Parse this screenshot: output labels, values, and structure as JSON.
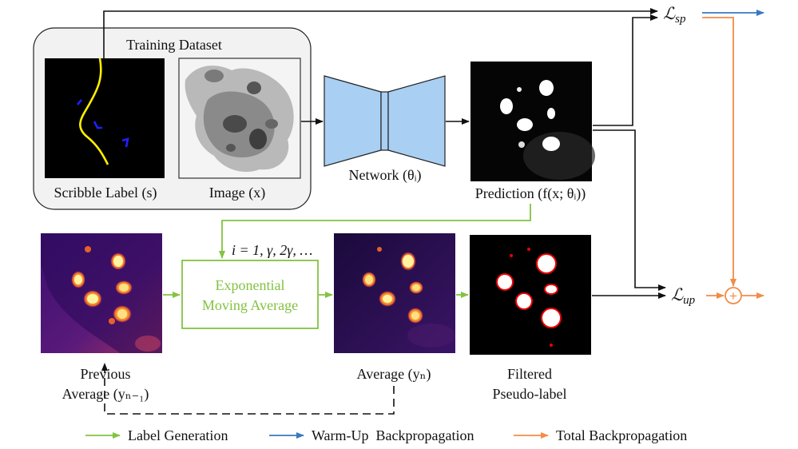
{
  "dataset": {
    "title": "Training Dataset"
  },
  "labels": {
    "scribble": "Scribble Label (s)",
    "image": "Image (x)",
    "network": "Network (θᵢ)",
    "prediction": "Prediction (f(x; θᵢ))",
    "iter": "i = 1, γ, 2γ, …",
    "ema_line1": "Exponential",
    "ema_line2": "Moving Average",
    "prev_line1": "Previous",
    "prev_line2": "Average (yₙ₋₁)",
    "avg": "Average (yₙ)",
    "filtered_line1": "Filtered",
    "filtered_line2": "Pseudo-label",
    "loss_sp": "ℒsp",
    "loss_up": "ℒup",
    "plus": "+"
  },
  "legend": [
    {
      "label": "Label Generation",
      "color": "#82c341"
    },
    {
      "label": "Warm-Up  Backpropagation",
      "color": "#3a78c0"
    },
    {
      "label": "Total Backpropagation",
      "color": "#f28c46"
    }
  ],
  "colors": {
    "green": "#82c341",
    "blue": "#3a78c0",
    "orange": "#f28c46",
    "network": "#a9cff2"
  }
}
